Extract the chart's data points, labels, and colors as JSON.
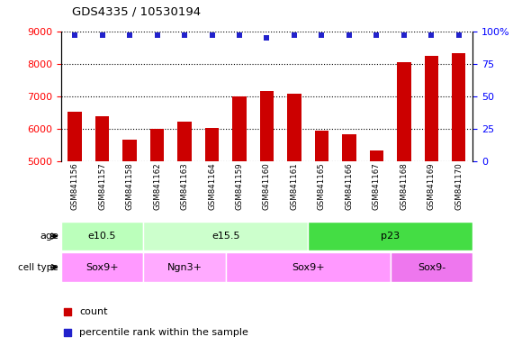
{
  "title": "GDS4335 / 10530194",
  "samples": [
    "GSM841156",
    "GSM841157",
    "GSM841158",
    "GSM841162",
    "GSM841163",
    "GSM841164",
    "GSM841159",
    "GSM841160",
    "GSM841161",
    "GSM841165",
    "GSM841166",
    "GSM841167",
    "GSM841168",
    "GSM841169",
    "GSM841170"
  ],
  "counts": [
    6520,
    6380,
    5650,
    6000,
    6200,
    6020,
    6980,
    7150,
    7060,
    5940,
    5810,
    5330,
    8050,
    8230,
    8310
  ],
  "percentile_ranks": [
    97,
    97,
    97,
    97,
    97,
    97,
    97,
    95,
    97,
    97,
    97,
    97,
    97,
    97,
    97
  ],
  "ylim_left": [
    5000,
    9000
  ],
  "ylim_right": [
    0,
    100
  ],
  "yticks_left": [
    5000,
    6000,
    7000,
    8000,
    9000
  ],
  "yticks_right": [
    0,
    25,
    50,
    75,
    100
  ],
  "bar_color": "#CC0000",
  "dot_color": "#2222CC",
  "age_groups": [
    {
      "label": "e10.5",
      "start": 0,
      "end": 3,
      "color": "#BBFFBB"
    },
    {
      "label": "e15.5",
      "start": 3,
      "end": 9,
      "color": "#CCFFCC"
    },
    {
      "label": "p23",
      "start": 9,
      "end": 15,
      "color": "#44DD44"
    }
  ],
  "cell_type_groups": [
    {
      "label": "Sox9+",
      "start": 0,
      "end": 3,
      "color": "#FF99FF"
    },
    {
      "label": "Ngn3+",
      "start": 3,
      "end": 6,
      "color": "#FFAAFF"
    },
    {
      "label": "Sox9+",
      "start": 6,
      "end": 12,
      "color": "#FF99FF"
    },
    {
      "label": "Sox9-",
      "start": 12,
      "end": 15,
      "color": "#EE77EE"
    }
  ],
  "legend_count_label": "count",
  "legend_pct_label": "percentile rank within the sample",
  "bar_width": 0.5
}
